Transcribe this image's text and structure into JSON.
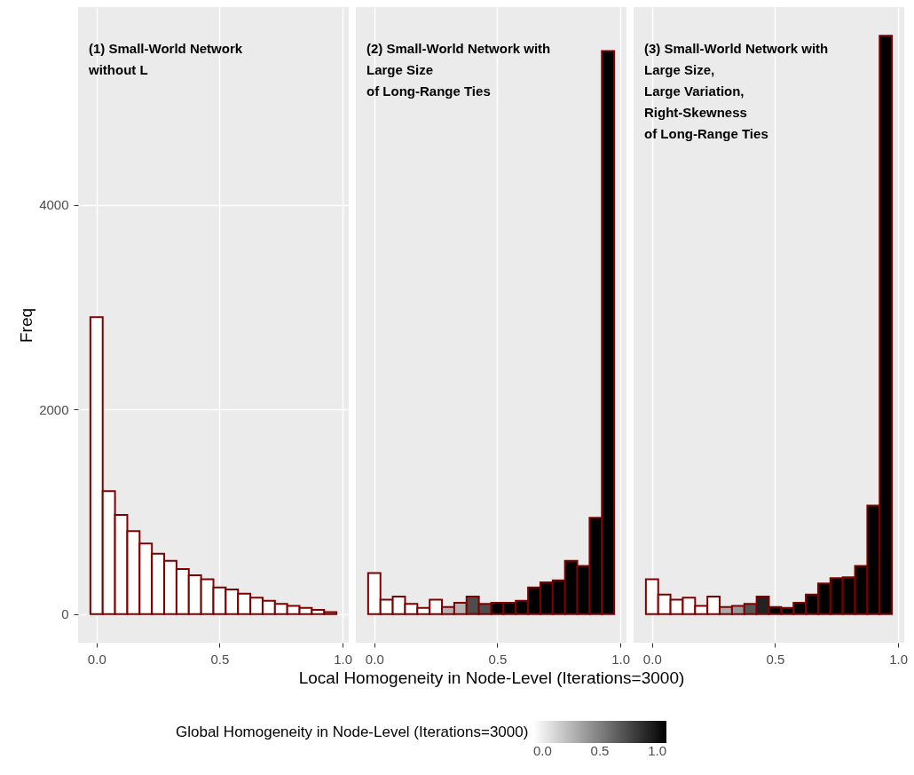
{
  "chart_data": [
    {
      "type": "histogram",
      "ylabel": "Freq",
      "annotations": [
        "(1) Small-World Network\n without L"
      ],
      "bins": [
        -0.025,
        0.025,
        0.075,
        0.125,
        0.175,
        0.225,
        0.275,
        0.325,
        0.375,
        0.425,
        0.475,
        0.525,
        0.575,
        0.625,
        0.675,
        0.725,
        0.775,
        0.825,
        0.875,
        0.925,
        0.975
      ],
      "values": [
        2900,
        1200,
        970,
        810,
        690,
        590,
        520,
        440,
        380,
        340,
        260,
        240,
        200,
        160,
        130,
        100,
        80,
        60,
        40,
        20
      ],
      "colors": [
        "#ffffff",
        "#ffffff",
        "#ffffff",
        "#ffffff",
        "#ffffff",
        "#ffffff",
        "#ffffff",
        "#ffffff",
        "#ffffff",
        "#ffffff",
        "#ffffff",
        "#ffffff",
        "#ffffff",
        "#ffffff",
        "#ffffff",
        "#ffffff",
        "#ffffff",
        "#ffffff",
        "#ffffff",
        "#ffffff"
      ],
      "color": "#7f0000",
      "xlim": [
        -0.075,
        1.025
      ],
      "xticks": [
        {
          "value": 0,
          "label": "0.0"
        },
        {
          "value": 0.5,
          "label": "0.5"
        },
        {
          "value": 1,
          "label": "1.0"
        }
      ],
      "ylim": [
        -280,
        5930
      ],
      "yticks": [
        0,
        2000,
        4000
      ],
      "grid": true
    },
    {
      "type": "histogram",
      "xlabel": "Local Homogeneity in Node-Level (Iterations=3000)",
      "annotations": [
        "(2) Small-World Network with\n Large Size\n of Long-Range Ties"
      ],
      "bins": [
        -0.025,
        0.025,
        0.075,
        0.125,
        0.175,
        0.225,
        0.275,
        0.325,
        0.375,
        0.425,
        0.475,
        0.525,
        0.575,
        0.625,
        0.675,
        0.725,
        0.775,
        0.825,
        0.875,
        0.925,
        0.975
      ],
      "values": [
        400,
        140,
        170,
        100,
        60,
        140,
        70,
        110,
        170,
        100,
        110,
        110,
        130,
        260,
        310,
        330,
        520,
        470,
        940,
        5500
      ],
      "cvalues": [
        0,
        0,
        0,
        0,
        0,
        0.02,
        0.3,
        0.3,
        0.7,
        0.7,
        1,
        1,
        1,
        1,
        1,
        1,
        1,
        1,
        1,
        1
      ],
      "color": "#7f0000",
      "clim": [
        0,
        1
      ],
      "clabel": "Global Homogeneity in Node-Level (Iterations=3000)",
      "cticks": [
        {
          "value": 0,
          "label": "0.0"
        },
        {
          "value": 0.5,
          "label": "0.5"
        },
        {
          "value": 1,
          "label": "1.0"
        }
      ],
      "xlim": [
        -0.075,
        1.025
      ],
      "xticks": [
        {
          "value": 0,
          "label": "0.0"
        },
        {
          "value": 0.5,
          "label": "0.5"
        },
        {
          "value": 1,
          "label": "1.0"
        }
      ],
      "ylim": [
        -280,
        5930
      ],
      "tick_labels": "x",
      "grid": true
    },
    {
      "type": "histogram",
      "annotations": [
        "(3) Small-World Network with\n Large Size,\n Large Variation,\n Right-Skewness\n  of Long-Range Ties"
      ],
      "bins": [
        -0.025,
        0.025,
        0.075,
        0.125,
        0.175,
        0.225,
        0.275,
        0.325,
        0.375,
        0.425,
        0.475,
        0.525,
        0.575,
        0.625,
        0.675,
        0.725,
        0.775,
        0.825,
        0.875,
        0.925,
        0.975
      ],
      "values": [
        340,
        190,
        140,
        160,
        80,
        170,
        70,
        80,
        100,
        170,
        70,
        60,
        110,
        190,
        300,
        350,
        360,
        470,
        1060,
        5650
      ],
      "colors": [
        "#ffffff",
        "#ffffff",
        "#ffffff",
        "#ffffff",
        "#ffffff",
        "#ffffff",
        "#aaaaaa",
        "#999999",
        "#555555",
        "#222222",
        "#000000",
        "#000000",
        "#000000",
        "#000000",
        "#000000",
        "#000000",
        "#000000",
        "#000000",
        "#000000",
        "#000000"
      ],
      "color": "#7f0000",
      "xlim": [
        -0.075,
        1.025
      ],
      "xticks": [
        {
          "value": 0,
          "label": "0.0"
        },
        {
          "value": 0.5,
          "label": "0.5"
        },
        {
          "value": 1,
          "label": "1.0"
        }
      ],
      "ylim": [
        -280,
        5930
      ],
      "tick_labels": "x",
      "grid": true
    }
  ]
}
